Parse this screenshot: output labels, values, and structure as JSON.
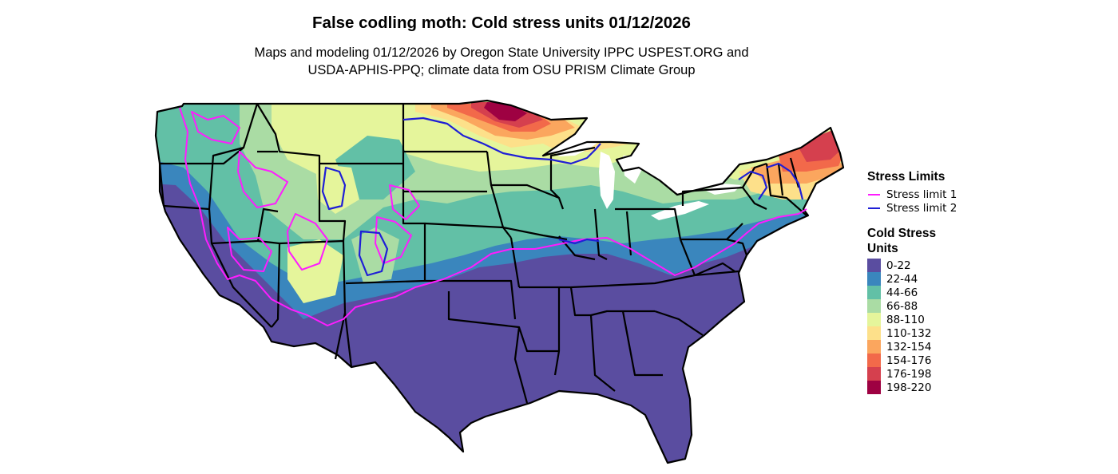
{
  "title": "False codling moth: Cold stress units 01/12/2026",
  "subtitle": {
    "line1": "Maps and modeling 01/12/2026 by Oregon State University IPPC USPEST.ORG and",
    "line2": "USDA-APHIS-PPQ; climate data from OSU PRISM Climate Group"
  },
  "legend": {
    "limits_title": "Stress Limits",
    "limits": [
      {
        "label": "Stress limit 1",
        "color": "#ff1cff"
      },
      {
        "label": "Stress limit 2",
        "color": "#1f1fd6"
      }
    ],
    "units_title": "Cold Stress Units",
    "classes": [
      {
        "label": "0-22",
        "color": "#5a4da0"
      },
      {
        "label": "22-44",
        "color": "#3a86bd"
      },
      {
        "label": "44-66",
        "color": "#62c0a6"
      },
      {
        "label": "66-88",
        "color": "#aadca4"
      },
      {
        "label": "88-110",
        "color": "#e5f59b"
      },
      {
        "label": "110-132",
        "color": "#fde08a"
      },
      {
        "label": "132-154",
        "color": "#fba65e"
      },
      {
        "label": "154-176",
        "color": "#f2694a"
      },
      {
        "label": "176-198",
        "color": "#d5404e"
      },
      {
        "label": "198-220",
        "color": "#9e0142"
      }
    ]
  }
}
